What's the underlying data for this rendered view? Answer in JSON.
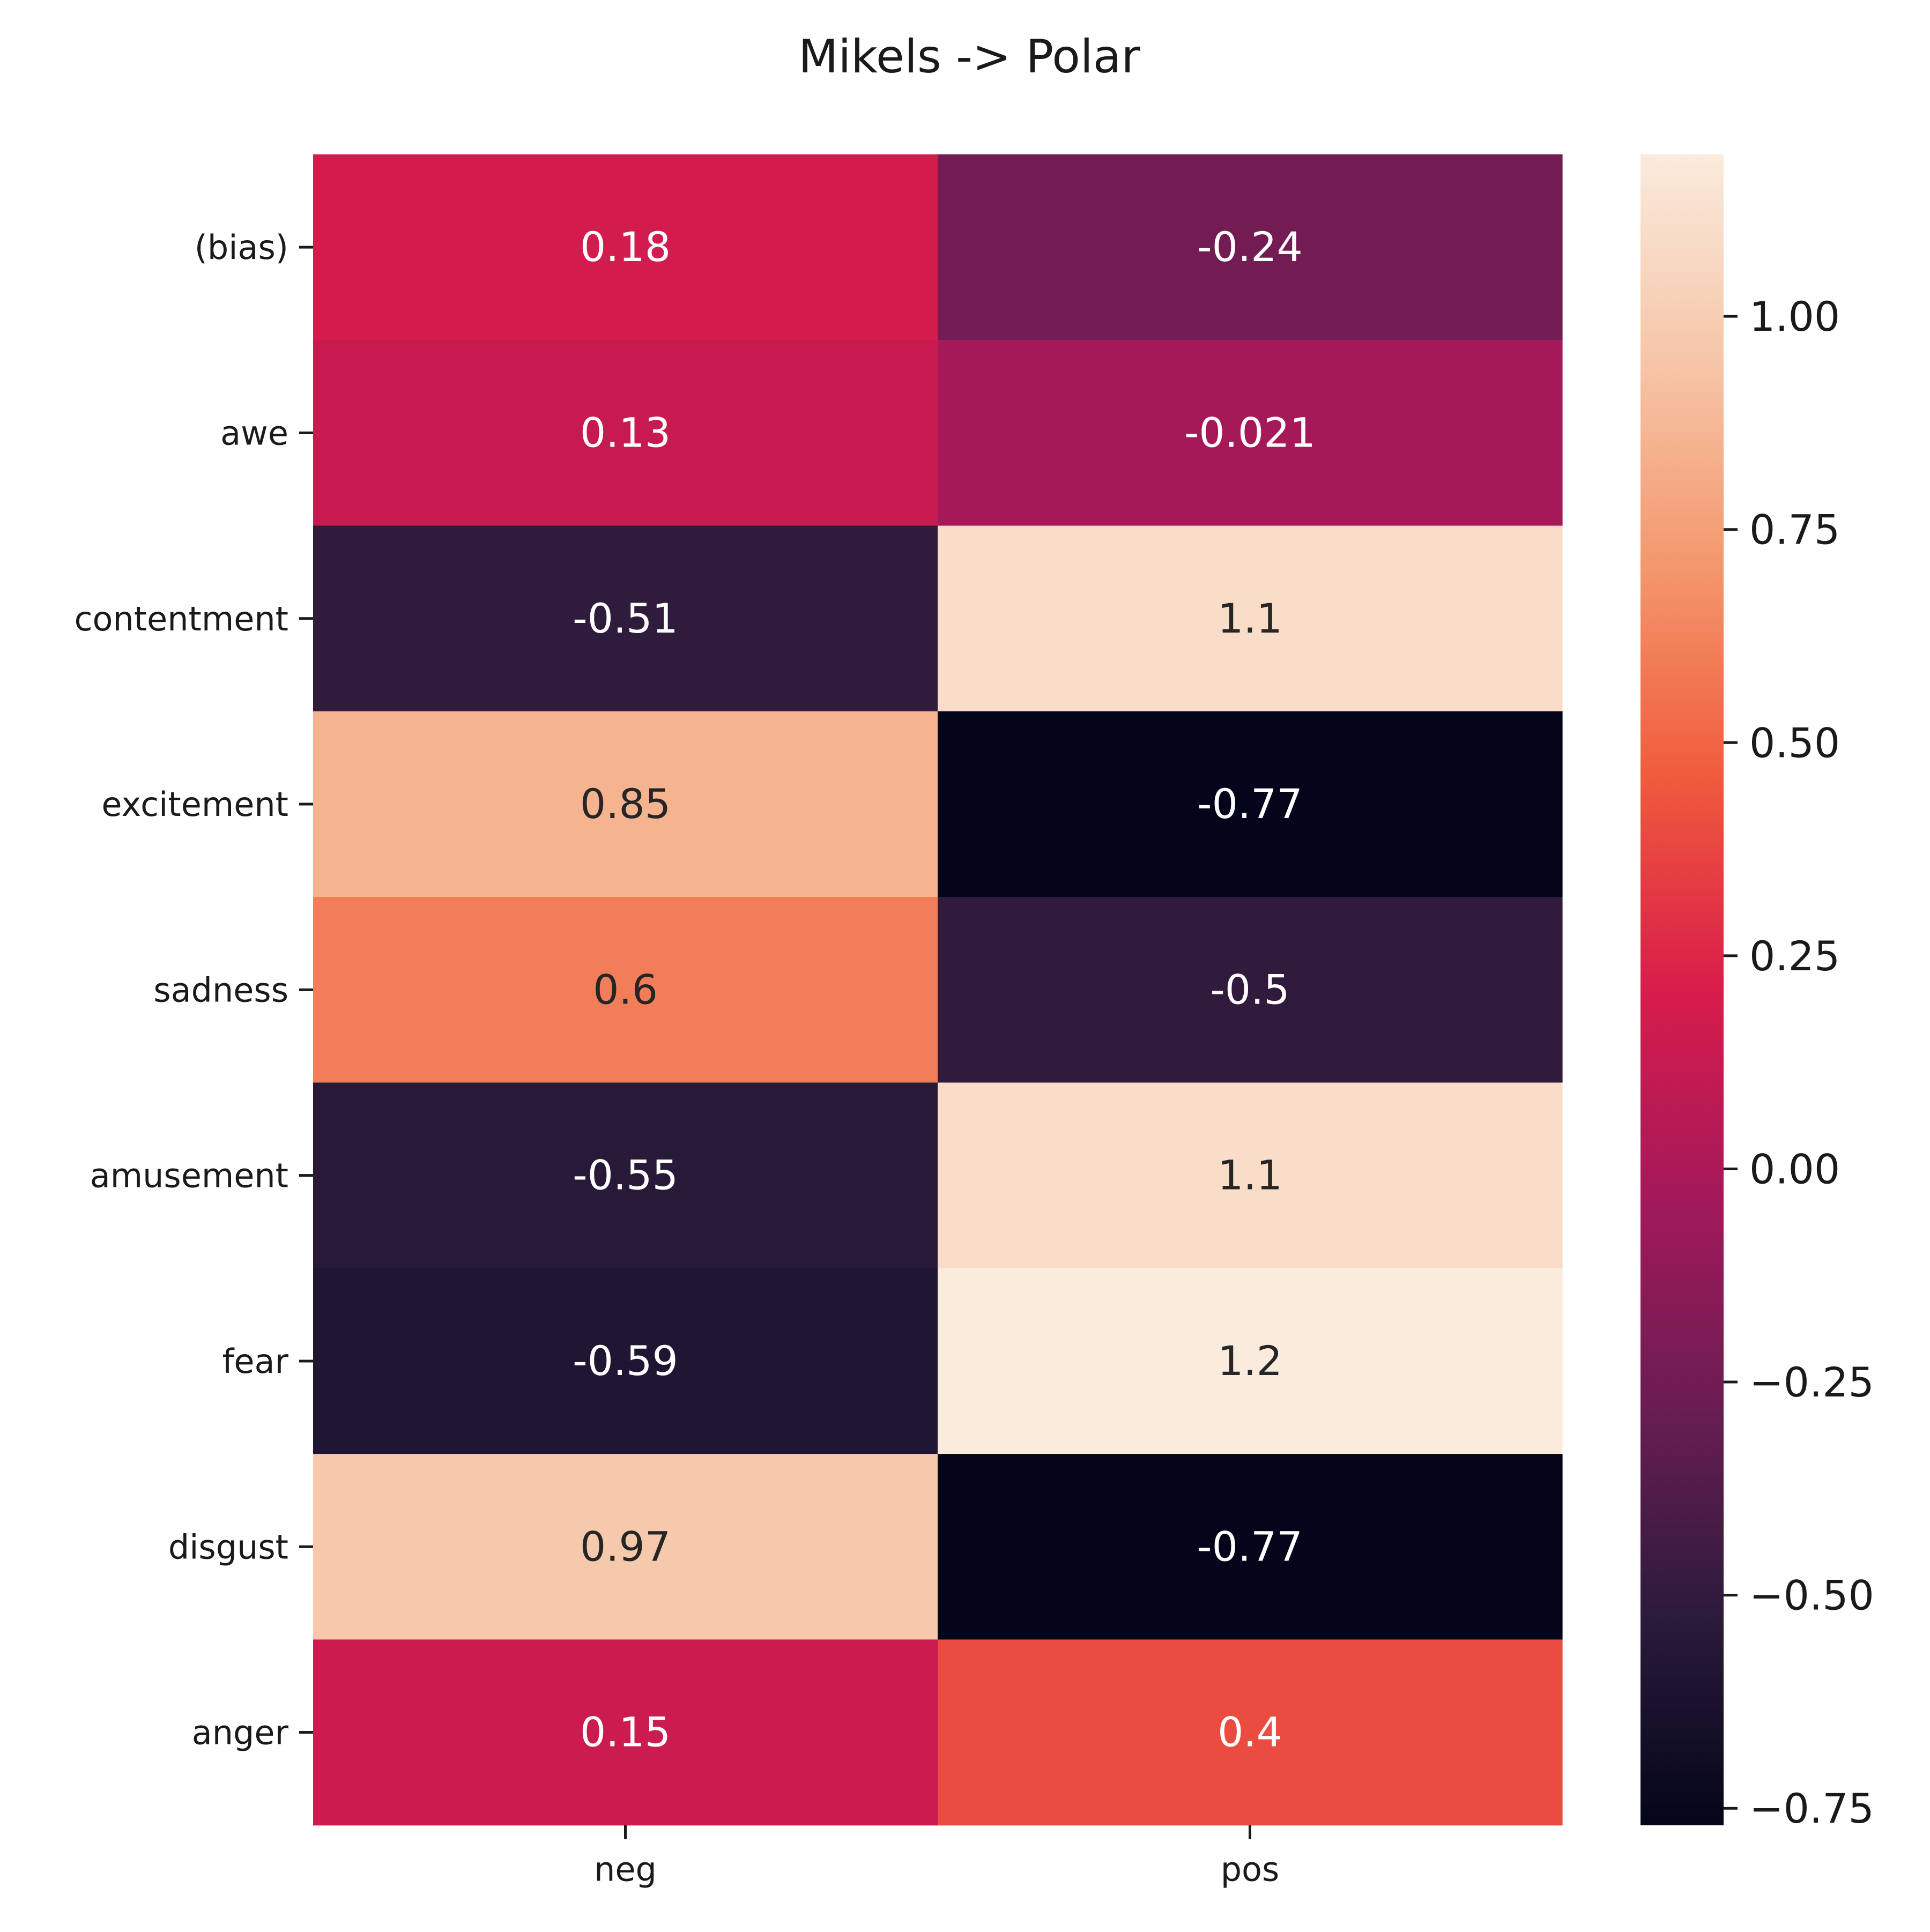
{
  "chart_data": {
    "type": "heatmap",
    "title": "Mikels -> Polar",
    "xlabel": "",
    "ylabel": "",
    "x_categories": [
      "neg",
      "pos"
    ],
    "y_categories": [
      "(bias)",
      "awe",
      "contentment",
      "excitement",
      "sadness",
      "amusement",
      "fear",
      "disgust",
      "anger"
    ],
    "values": [
      [
        0.18,
        -0.24
      ],
      [
        0.13,
        -0.021
      ],
      [
        -0.51,
        1.1
      ],
      [
        0.85,
        -0.77
      ],
      [
        0.6,
        -0.5
      ],
      [
        -0.55,
        1.1
      ],
      [
        -0.59,
        1.2
      ],
      [
        0.97,
        -0.77
      ],
      [
        0.15,
        0.4
      ]
    ],
    "annotations": [
      [
        "0.18",
        "-0.24"
      ],
      [
        "0.13",
        "-0.021"
      ],
      [
        "-0.51",
        "1.1"
      ],
      [
        "0.85",
        "-0.77"
      ],
      [
        "0.6",
        "-0.5"
      ],
      [
        "-0.55",
        "1.1"
      ],
      [
        "-0.59",
        "1.2"
      ],
      [
        "0.97",
        "-0.77"
      ],
      [
        "0.15",
        "0.4"
      ]
    ],
    "colorbar": {
      "vmin": -0.77,
      "vmax": 1.19,
      "ticks": [
        -0.75,
        -0.5,
        -0.25,
        0.0,
        0.25,
        0.5,
        0.75,
        1.0
      ],
      "tick_labels": [
        "−0.75",
        "−0.50",
        "−0.25",
        "0.00",
        "0.25",
        "0.50",
        "0.75",
        "1.00"
      ],
      "colormap": "rocket",
      "colormap_stops": [
        "#03051a",
        "#2b1b3a",
        "#6a1d52",
        "#a3195a",
        "#d81c4b",
        "#ef5a3c",
        "#f3966b",
        "#f6c5a7",
        "#faebdd"
      ]
    },
    "grid": false,
    "legend": "colorbar-right"
  }
}
